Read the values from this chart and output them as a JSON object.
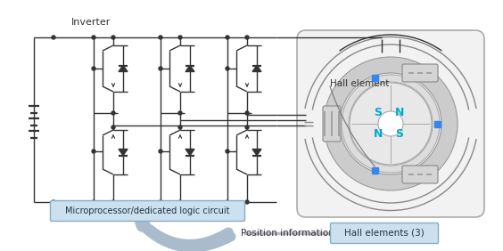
{
  "bg_color": "#ffffff",
  "line_color": "#333333",
  "gray_line": "#888888",
  "cyan_color": "#00aacc",
  "blue_dot": "#3388ee",
  "box_border": "#88aacc",
  "box_fill": "#cce0ee",
  "arrow_fill": "#aabbcc",
  "title": "Inverter",
  "label_mp": "Microprocessor/dedicated logic circuit",
  "label_pos": "Position information",
  "label_hall": "Hall element",
  "label_hall3": "Hall elements (3)",
  "sns": [
    "S",
    "N",
    "N",
    "S"
  ],
  "figsize": [
    5.64,
    2.82
  ],
  "dpi": 100
}
